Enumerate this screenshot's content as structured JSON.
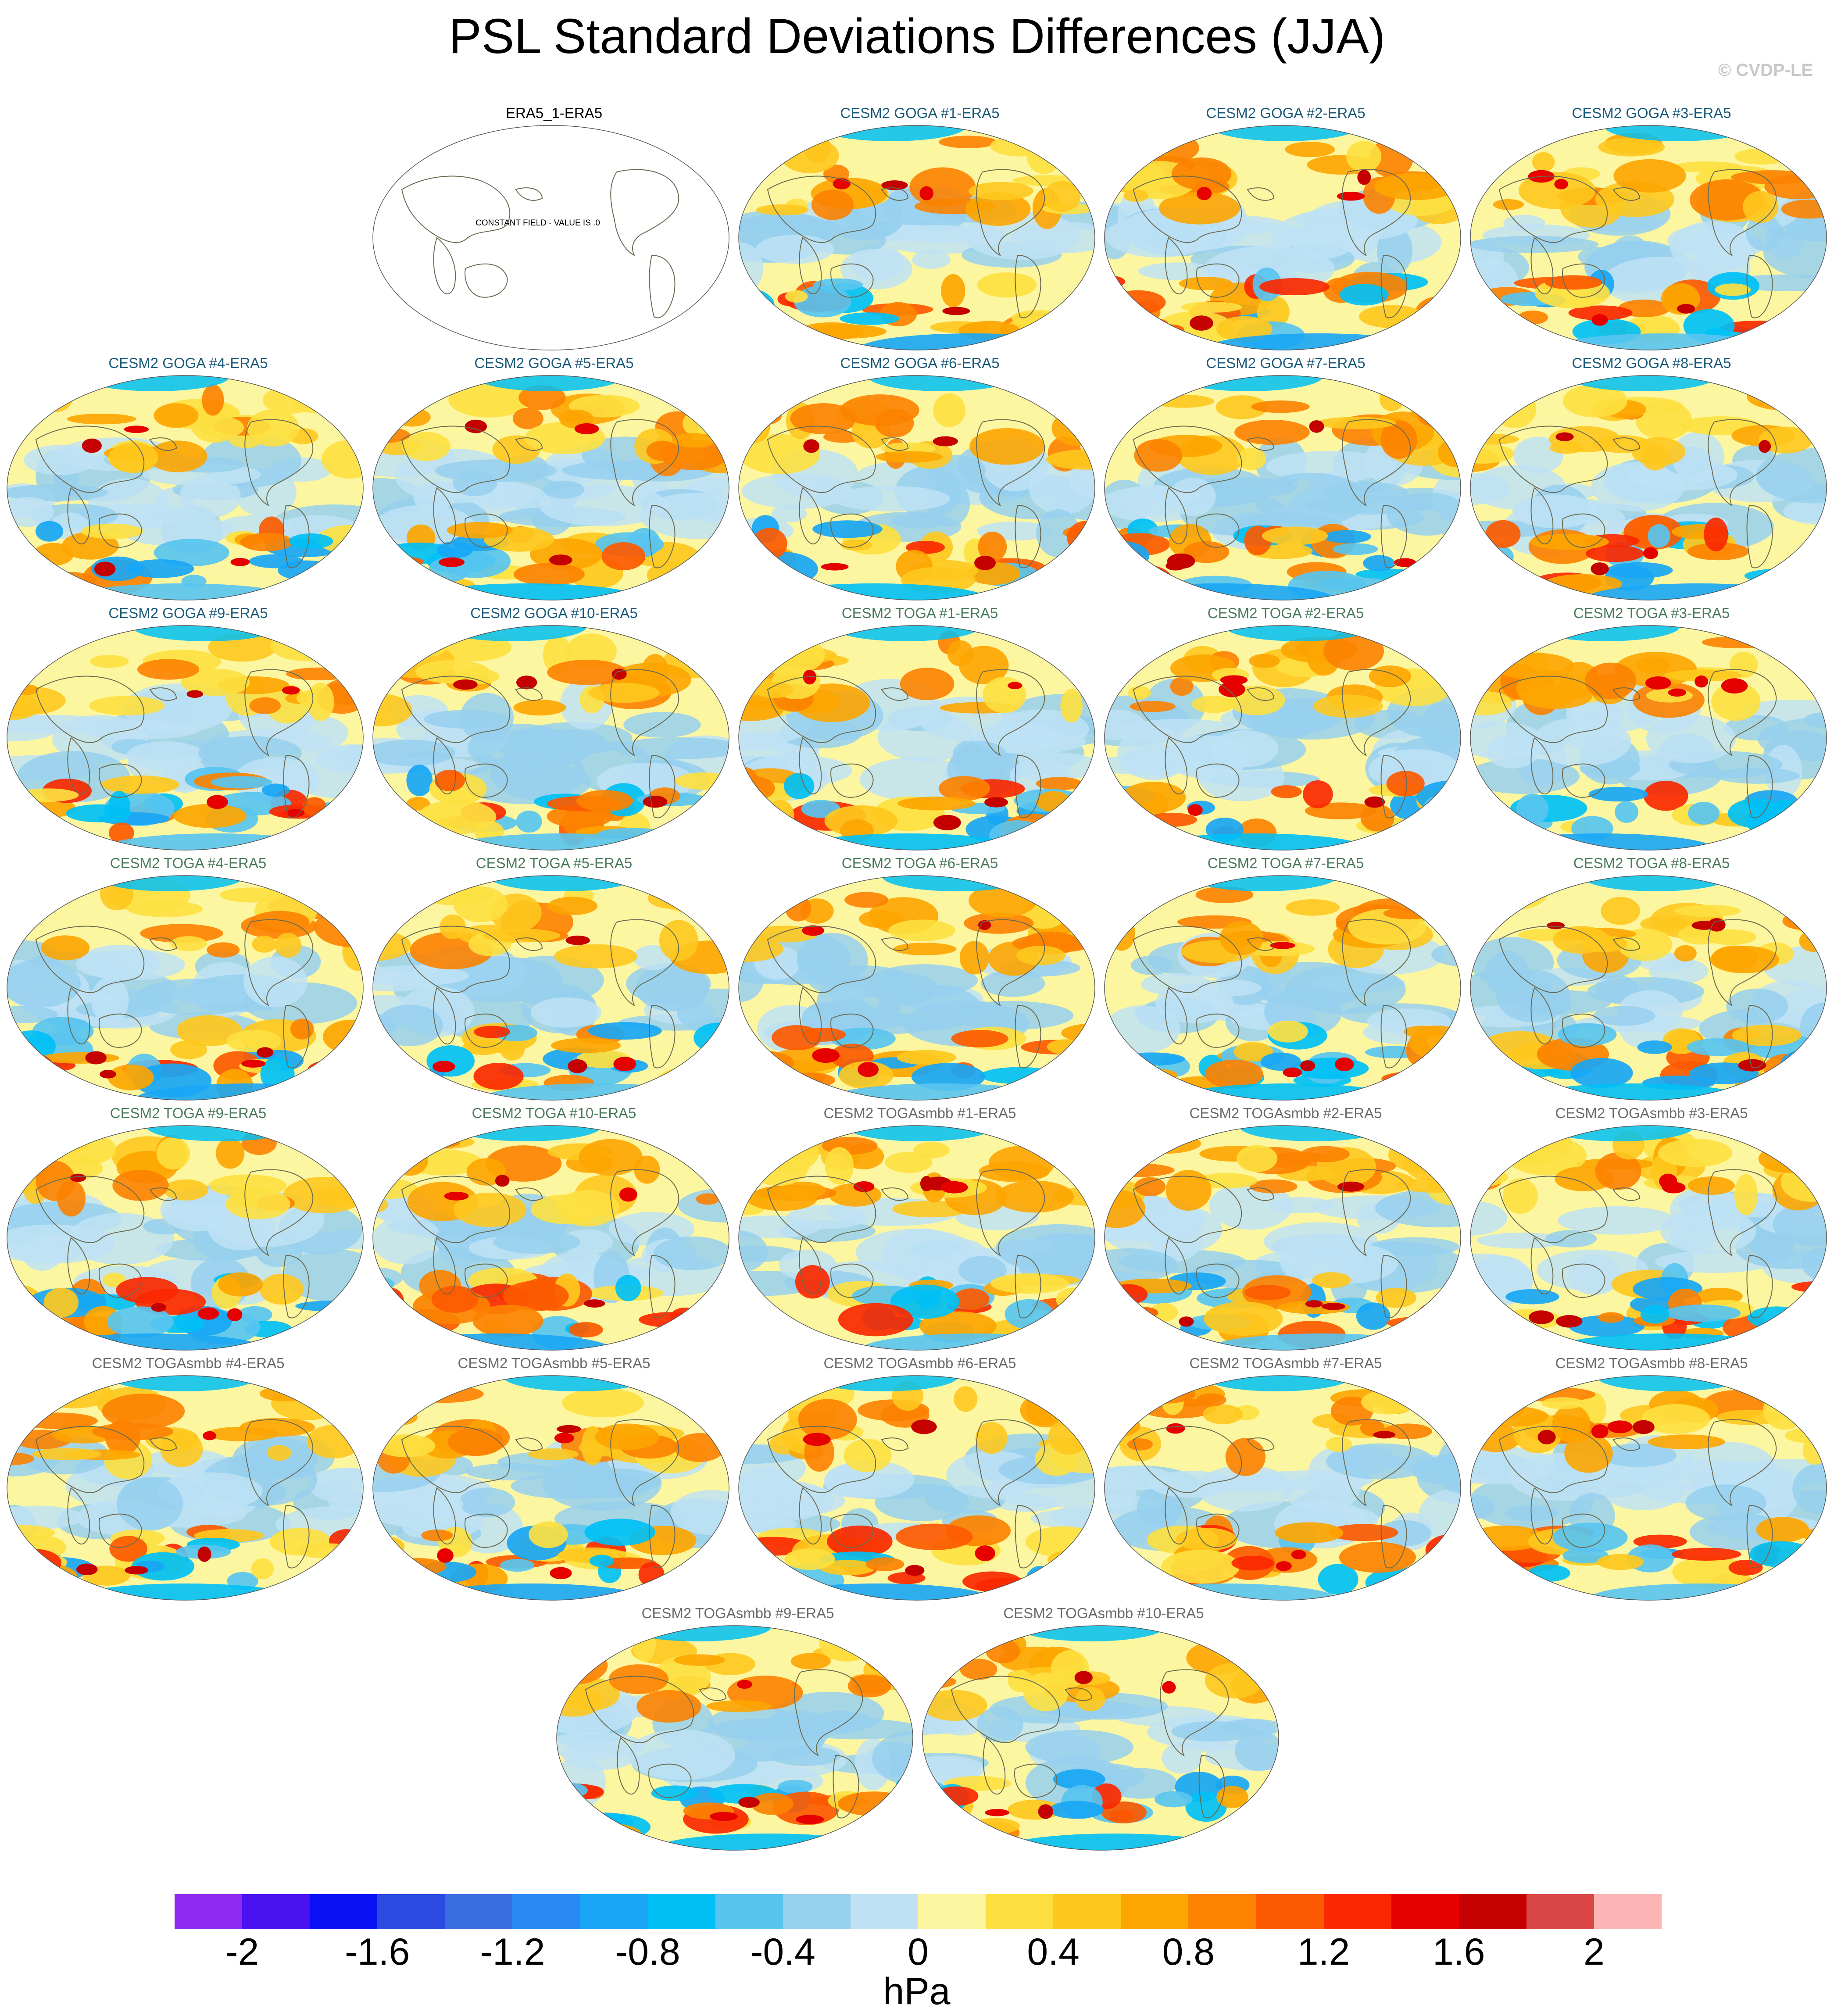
{
  "title": "PSL Standard Deviations Differences (JJA)",
  "copyright": "© CVDP-LE",
  "panels": [
    {
      "label": "ERA5_1-ERA5",
      "color": "#000000",
      "constant_field": "CONSTANT FIELD - VALUE IS .0"
    },
    {
      "label": "CESM2 GOGA #1-ERA5",
      "color": "#1b5a7a"
    },
    {
      "label": "CESM2 GOGA #2-ERA5",
      "color": "#1b5a7a"
    },
    {
      "label": "CESM2 GOGA #3-ERA5",
      "color": "#1b5a7a"
    },
    {
      "label": "CESM2 GOGA #4-ERA5",
      "color": "#1b5a7a"
    },
    {
      "label": "CESM2 GOGA #5-ERA5",
      "color": "#1b5a7a"
    },
    {
      "label": "CESM2 GOGA #6-ERA5",
      "color": "#1b5a7a"
    },
    {
      "label": "CESM2 GOGA #7-ERA5",
      "color": "#1b5a7a"
    },
    {
      "label": "CESM2 GOGA #8-ERA5",
      "color": "#1b5a7a"
    },
    {
      "label": "CESM2 GOGA #9-ERA5",
      "color": "#1b5a7a"
    },
    {
      "label": "CESM2 GOGA #10-ERA5",
      "color": "#1b5a7a"
    },
    {
      "label": "CESM2 TOGA #1-ERA5",
      "color": "#4a7a5a"
    },
    {
      "label": "CESM2 TOGA #2-ERA5",
      "color": "#4a7a5a"
    },
    {
      "label": "CESM2 TOGA #3-ERA5",
      "color": "#4a7a5a"
    },
    {
      "label": "CESM2 TOGA #4-ERA5",
      "color": "#4a7a5a"
    },
    {
      "label": "CESM2 TOGA #5-ERA5",
      "color": "#4a7a5a"
    },
    {
      "label": "CESM2 TOGA #6-ERA5",
      "color": "#4a7a5a"
    },
    {
      "label": "CESM2 TOGA #7-ERA5",
      "color": "#4a7a5a"
    },
    {
      "label": "CESM2 TOGA #8-ERA5",
      "color": "#4a7a5a"
    },
    {
      "label": "CESM2 TOGA #9-ERA5",
      "color": "#4a7a5a"
    },
    {
      "label": "CESM2 TOGA #10-ERA5",
      "color": "#4a7a5a"
    },
    {
      "label": "CESM2 TOGAsmbb #1-ERA5",
      "color": "#6a6a6a"
    },
    {
      "label": "CESM2 TOGAsmbb #2-ERA5",
      "color": "#6a6a6a"
    },
    {
      "label": "CESM2 TOGAsmbb #3-ERA5",
      "color": "#6a6a6a"
    },
    {
      "label": "CESM2 TOGAsmbb #4-ERA5",
      "color": "#6a6a6a"
    },
    {
      "label": "CESM2 TOGAsmbb #5-ERA5",
      "color": "#6a6a6a"
    },
    {
      "label": "CESM2 TOGAsmbb #6-ERA5",
      "color": "#6a6a6a"
    },
    {
      "label": "CESM2 TOGAsmbb #7-ERA5",
      "color": "#6a6a6a"
    },
    {
      "label": "CESM2 TOGAsmbb #8-ERA5",
      "color": "#6a6a6a"
    },
    {
      "label": "CESM2 TOGAsmbb #9-ERA5",
      "color": "#6a6a6a"
    },
    {
      "label": "CESM2 TOGAsmbb #10-ERA5",
      "color": "#6a6a6a"
    }
  ],
  "colorbar": {
    "units": "hPa",
    "colors": [
      "#8f2af0",
      "#4a12f0",
      "#0a12f5",
      "#2a4ae0",
      "#3a6ee0",
      "#2a8af5",
      "#18a6f5",
      "#00c0f5",
      "#58c4f0",
      "#96d0ee",
      "#bee2f4",
      "#fdf6a0",
      "#fde040",
      "#fec81e",
      "#fda500",
      "#fc8200",
      "#fc5a00",
      "#fa2800",
      "#e60000",
      "#c40000",
      "#da4646",
      "#fcb4b4"
    ],
    "tick_labels": [
      "-2",
      "-1.6",
      "-1.2",
      "-0.8",
      "-0.4",
      "0",
      "0.4",
      "0.8",
      "1.2",
      "1.6",
      "2"
    ]
  }
}
